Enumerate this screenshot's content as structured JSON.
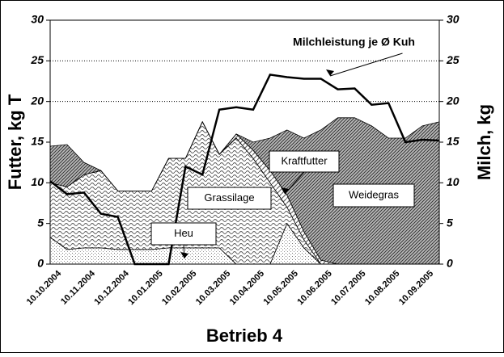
{
  "chart_data": {
    "type": "stacked-area-line",
    "title": "Betrieb 4",
    "ylabel": "Futter, kg T",
    "y2label": "Milch, kg",
    "categories": [
      "10.10.2004",
      null,
      "10.11.2004",
      null,
      "10.12.2004",
      null,
      "10.01.2005",
      null,
      "10.02.2005",
      null,
      "10.03.2005",
      null,
      "10.04.2005",
      null,
      "10.05.2005",
      null,
      "10.06.2005",
      null,
      "10.07.2005",
      null,
      "10.08.2005",
      null,
      "10.09.2005",
      null
    ],
    "series": [
      {
        "name": "Heu",
        "values": [
          3.3,
          1.8,
          2,
          2,
          1.8,
          1.8,
          1.8,
          2,
          2,
          2,
          2,
          0,
          0,
          0,
          5,
          2,
          0,
          0,
          0,
          0,
          0,
          0,
          0,
          0
        ]
      },
      {
        "name": "Grassilage",
        "values": [
          6.7,
          7.7,
          9,
          9.5,
          7.2,
          7.2,
          7.2,
          11,
          11,
          15.5,
          11.5,
          15.5,
          13,
          10,
          2,
          1,
          0,
          0,
          0,
          0,
          0,
          0,
          0,
          0
        ]
      },
      {
        "name": "Kraftfutter",
        "values": [
          0,
          0,
          0,
          0,
          0,
          0,
          0,
          0,
          0,
          0,
          0,
          0.5,
          1,
          1.5,
          1.5,
          1,
          0.5,
          0,
          0,
          0,
          0,
          0,
          0,
          0
        ]
      },
      {
        "name": "Weidegras",
        "values": [
          4.5,
          5.2,
          1.5,
          0,
          0,
          0,
          0,
          0,
          0,
          0,
          0,
          0,
          1,
          4,
          8,
          11.5,
          16,
          18,
          18,
          17,
          15.5,
          15.5,
          17,
          17.5
        ]
      },
      {
        "name": "Milchleistung je Ø Kuh",
        "axis": "y2",
        "values": [
          10.2,
          8.6,
          8.8,
          6.2,
          5.8,
          0,
          0,
          0,
          12,
          11,
          19,
          19.3,
          19,
          23.3,
          23,
          22.8,
          22.8,
          21.5,
          21.6,
          19.6,
          19.8,
          15,
          15.3,
          15.2
        ]
      }
    ],
    "ylim": [
      0,
      30
    ],
    "yticks": [
      0,
      5,
      10,
      15,
      20,
      25,
      30
    ],
    "y2lim": [
      0,
      30
    ],
    "y2ticks": [
      0,
      5,
      10,
      15,
      20,
      25,
      30
    ],
    "grid": true
  }
}
